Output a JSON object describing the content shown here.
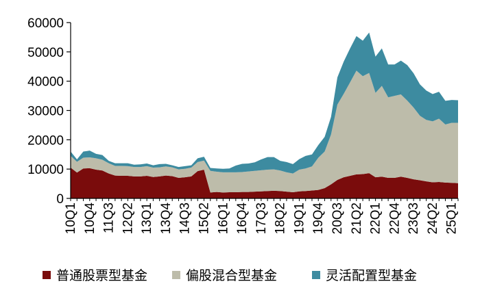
{
  "chart_data": {
    "type": "area",
    "stacked": true,
    "grid": false,
    "legend_position": "bottom",
    "ylim": [
      0,
      60000
    ],
    "yticks": [
      0,
      10000,
      20000,
      30000,
      40000,
      50000,
      60000
    ],
    "x_labels_shown": [
      "10Q1",
      "10Q4",
      "11Q3",
      "12Q2",
      "13Q1",
      "13Q4",
      "14Q3",
      "15Q2",
      "16Q1",
      "16Q4",
      "17Q3",
      "18Q2",
      "19Q1",
      "19Q4",
      "20Q3",
      "21Q2",
      "22Q1",
      "22Q4",
      "23Q3",
      "24Q2",
      "25Q1"
    ],
    "x": [
      "10Q1",
      "10Q2",
      "10Q3",
      "10Q4",
      "11Q1",
      "11Q2",
      "11Q3",
      "11Q4",
      "12Q1",
      "12Q2",
      "12Q3",
      "12Q4",
      "13Q1",
      "13Q2",
      "13Q3",
      "13Q4",
      "14Q1",
      "14Q2",
      "14Q3",
      "14Q4",
      "15Q1",
      "15Q2",
      "15Q3",
      "15Q4",
      "16Q1",
      "16Q2",
      "16Q3",
      "16Q4",
      "17Q1",
      "17Q2",
      "17Q3",
      "17Q4",
      "18Q1",
      "18Q2",
      "18Q3",
      "18Q4",
      "19Q1",
      "19Q2",
      "19Q3",
      "19Q4",
      "20Q1",
      "20Q2",
      "20Q3",
      "20Q4",
      "21Q1",
      "21Q2",
      "21Q3",
      "21Q4",
      "22Q1",
      "22Q2",
      "22Q3",
      "22Q4",
      "23Q1",
      "23Q2",
      "23Q3",
      "23Q4",
      "24Q1",
      "24Q2",
      "24Q3",
      "24Q4",
      "25Q1",
      "25Q2"
    ],
    "series": [
      {
        "name": "普通股票型基金",
        "color": "#7a0c0c",
        "values": [
          10500,
          8800,
          10200,
          10300,
          9800,
          9500,
          8500,
          7800,
          7700,
          7700,
          7500,
          7500,
          7700,
          7300,
          7500,
          7800,
          7600,
          7000,
          7200,
          7500,
          9300,
          9800,
          2000,
          2200,
          2000,
          2100,
          2100,
          2200,
          2200,
          2300,
          2400,
          2500,
          2600,
          2500,
          2300,
          2100,
          2400,
          2500,
          2700,
          2900,
          3500,
          4800,
          6300,
          7200,
          7700,
          8200,
          8300,
          8600,
          7200,
          7400,
          7000,
          7000,
          7400,
          7000,
          6500,
          6200,
          5800,
          5500,
          5600,
          5400,
          5300,
          5200
        ]
      },
      {
        "name": "偏股混合型基金",
        "color": "#bdbcaa",
        "values": [
          4000,
          3700,
          3700,
          3700,
          3900,
          3700,
          3500,
          3300,
          3400,
          3300,
          3200,
          3200,
          3300,
          3200,
          3100,
          3100,
          3000,
          2900,
          2900,
          3000,
          3100,
          3100,
          7400,
          6900,
          6900,
          6800,
          6800,
          6800,
          7000,
          7100,
          7200,
          7300,
          7300,
          7000,
          6600,
          6400,
          7400,
          7700,
          8200,
          11000,
          12500,
          17000,
          25700,
          28500,
          31900,
          35400,
          33400,
          34200,
          28800,
          31000,
          27500,
          28000,
          28100,
          26400,
          24500,
          22000,
          21000,
          20800,
          21600,
          19800,
          20500,
          20600
        ]
      },
      {
        "name": "灵活配置型基金",
        "color": "#3d8ba0",
        "values": [
          1500,
          800,
          2100,
          2300,
          1500,
          1600,
          800,
          900,
          900,
          1000,
          800,
          900,
          900,
          800,
          1100,
          900,
          700,
          800,
          900,
          800,
          1300,
          1300,
          1000,
          1100,
          1200,
          1300,
          2300,
          2800,
          2700,
          2900,
          3700,
          4300,
          4200,
          3300,
          3500,
          3200,
          3600,
          4300,
          4100,
          4300,
          5000,
          6000,
          9300,
          11000,
          11600,
          11800,
          12100,
          13800,
          12400,
          12800,
          11200,
          10700,
          11500,
          12100,
          11700,
          10700,
          10000,
          9300,
          9200,
          8100,
          7800,
          7700
        ]
      }
    ]
  }
}
